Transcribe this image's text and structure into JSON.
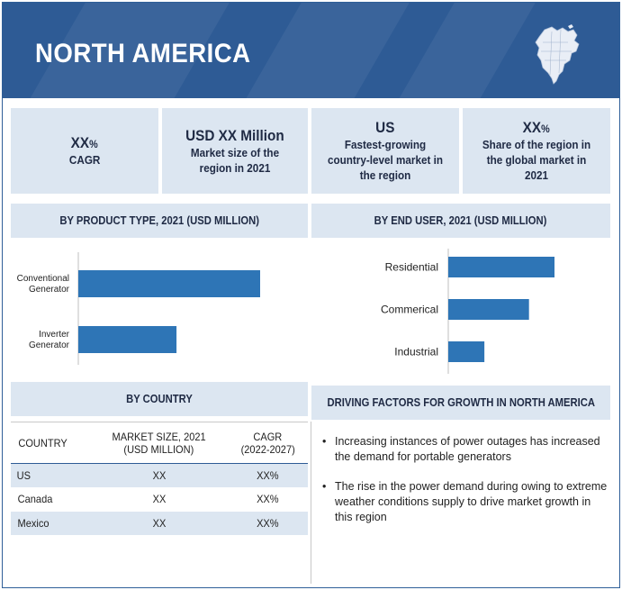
{
  "header": {
    "title": "NORTH AMERICA",
    "map_icon": "north-america-map-icon"
  },
  "kpis": [
    {
      "value": "XX",
      "unit": "%",
      "label": "CAGR"
    },
    {
      "value": "USD XX Million",
      "unit": "",
      "label": "Market size of the region in 2021"
    },
    {
      "value": "US",
      "unit": "",
      "label": "Fastest-growing country-level market in the region"
    },
    {
      "value": "XX",
      "unit": "%",
      "label": "Share of the region in the global market in 2021"
    }
  ],
  "sections": {
    "product_type": "BY PRODUCT TYPE, 2021 (USD MILLION)",
    "end_user": "BY END USER, 2021 (USD MILLION)",
    "country": "BY COUNTRY",
    "drivers": "DRIVING FACTORS FOR GROWTH IN NORTH AMERICA"
  },
  "colors": {
    "header_bg": "#2e5b95",
    "panel_bg": "#dce6f1",
    "bar": "#2e75b6"
  },
  "chart_data": [
    {
      "type": "bar",
      "orientation": "horizontal",
      "title": "BY PRODUCT TYPE, 2021 (USD MILLION)",
      "categories": [
        "Conventional Generator",
        "Inverter Generator"
      ],
      "category_lines": [
        [
          "Conventional",
          "Generator"
        ],
        [
          "Inverter",
          "Generator"
        ]
      ],
      "values": [
        100,
        54
      ]
    },
    {
      "type": "bar",
      "orientation": "horizontal",
      "title": "BY END USER, 2021 (USD MILLION)",
      "categories": [
        "Residential",
        "Commerical",
        "Industrial"
      ],
      "values": [
        100,
        76,
        34
      ]
    },
    {
      "type": "table",
      "title": "BY COUNTRY",
      "columns": [
        "COUNTRY",
        "MARKET SIZE, 2021 (USD MILLION)",
        "CAGR (2022-2027)"
      ],
      "column_lines": [
        [
          "COUNTRY"
        ],
        [
          "MARKET SIZE, 2021",
          "(USD MILLION)"
        ],
        [
          "CAGR",
          "(2022-2027)"
        ]
      ],
      "rows": [
        [
          "US",
          "XX",
          "XX%"
        ],
        [
          "Canada",
          "XX",
          "XX%"
        ],
        [
          "Mexico",
          "XX",
          "XX%"
        ]
      ]
    }
  ],
  "driving_factors": [
    "Increasing instances of power outages has increased the demand for portable generators",
    "The rise in the power demand during owing to extreme weather conditions supply to drive market growth in this region"
  ]
}
